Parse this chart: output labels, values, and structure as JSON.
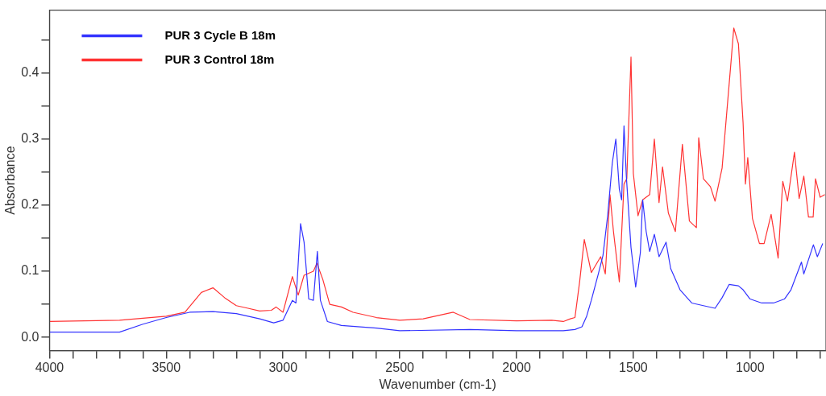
{
  "chart_data": {
    "type": "line",
    "xlabel": "Wavenumber (cm-1)",
    "ylabel": "Absorbance",
    "xlim": [
      4000,
      675
    ],
    "ylim": [
      -0.02,
      0.495
    ],
    "xticks": [
      4000,
      {
        "value": 3900,
        "label": null
      },
      {
        "value": 3800,
        "label": null
      },
      {
        "value": 3700,
        "label": null
      },
      {
        "value": 3600,
        "label": null
      },
      3500,
      {
        "value": 3400,
        "label": null
      },
      {
        "value": 3300,
        "label": null
      },
      {
        "value": 3200,
        "label": null
      },
      {
        "value": 3100,
        "label": null
      },
      3000,
      {
        "value": 2900,
        "label": null
      },
      {
        "value": 2800,
        "label": null
      },
      {
        "value": 2700,
        "label": null
      },
      {
        "value": 2600,
        "label": null
      },
      2500,
      {
        "value": 2400,
        "label": null
      },
      {
        "value": 2300,
        "label": null
      },
      {
        "value": 2200,
        "label": null
      },
      {
        "value": 2100,
        "label": null
      },
      2000,
      {
        "value": 1900,
        "label": null
      },
      {
        "value": 1800,
        "label": null
      },
      {
        "value": 1700,
        "label": null
      },
      {
        "value": 1600,
        "label": null
      },
      1500,
      {
        "value": 1400,
        "label": null
      },
      {
        "value": 1300,
        "label": null
      },
      {
        "value": 1200,
        "label": null
      },
      {
        "value": 1100,
        "label": null
      },
      1000,
      {
        "value": 900,
        "label": null
      },
      {
        "value": 800,
        "label": null
      },
      {
        "value": 700,
        "label": null
      }
    ],
    "yticks": [
      {
        "value": 0,
        "label": "0.0"
      },
      {
        "value": 0.05,
        "label": null
      },
      0.1,
      {
        "value": 0.15,
        "label": null
      },
      0.2,
      {
        "value": 0.25,
        "label": null
      },
      0.3,
      {
        "value": 0.35,
        "label": null
      },
      0.4,
      {
        "value": 0.45,
        "label": null
      }
    ],
    "legend": "top left",
    "marker": "none",
    "line_style": "solid",
    "series": [
      {
        "name": "PUR 3 Cycle B 18m",
        "color": "#3333ff",
        "x": [
          4000,
          3700,
          3600,
          3500,
          3400,
          3300,
          3200,
          3100,
          3040,
          3000,
          2960,
          2945,
          2925,
          2910,
          2890,
          2870,
          2853,
          2840,
          2810,
          2750,
          2600,
          2500,
          2200,
          2000,
          1800,
          1750,
          1720,
          1700,
          1680,
          1650,
          1630,
          1610,
          1590,
          1575,
          1560,
          1550,
          1540,
          1530,
          1510,
          1490,
          1470,
          1460,
          1445,
          1430,
          1410,
          1390,
          1360,
          1340,
          1330,
          1300,
          1250,
          1200,
          1150,
          1120,
          1090,
          1050,
          1030,
          1000,
          950,
          900,
          853,
          825,
          780,
          770,
          729,
          712,
          689
        ],
        "values": [
          0.008,
          0.008,
          0.02,
          0.03,
          0.038,
          0.039,
          0.036,
          0.028,
          0.022,
          0.026,
          0.056,
          0.052,
          0.172,
          0.144,
          0.058,
          0.056,
          0.13,
          0.056,
          0.024,
          0.018,
          0.014,
          0.01,
          0.012,
          0.01,
          0.01,
          0.012,
          0.016,
          0.032,
          0.056,
          0.096,
          0.124,
          0.184,
          0.264,
          0.3,
          0.224,
          0.208,
          0.32,
          0.244,
          0.136,
          0.076,
          0.128,
          0.208,
          0.16,
          0.13,
          0.156,
          0.122,
          0.144,
          0.104,
          0.096,
          0.072,
          0.052,
          0.048,
          0.044,
          0.06,
          0.08,
          0.078,
          0.072,
          0.058,
          0.052,
          0.052,
          0.058,
          0.072,
          0.114,
          0.096,
          0.14,
          0.122,
          0.142
        ]
      },
      {
        "name": "PUR 3 Control 18m",
        "color": "#ff3333",
        "x": [
          4000,
          3700,
          3500,
          3420,
          3350,
          3300,
          3250,
          3200,
          3150,
          3100,
          3050,
          3030,
          3000,
          2960,
          2935,
          2910,
          2870,
          2855,
          2830,
          2800,
          2750,
          2700,
          2600,
          2500,
          2400,
          2271,
          2200,
          2000,
          1850,
          1800,
          1770,
          1750,
          1730,
          1710,
          1680,
          1640,
          1620,
          1600,
          1585,
          1560,
          1540,
          1528,
          1510,
          1500,
          1480,
          1460,
          1430,
          1410,
          1390,
          1375,
          1350,
          1320,
          1290,
          1260,
          1230,
          1220,
          1200,
          1170,
          1150,
          1120,
          1080,
          1070,
          1050,
          1030,
          1020,
          1010,
          990,
          960,
          940,
          910,
          880,
          860,
          840,
          810,
          790,
          770,
          750,
          730,
          720,
          700,
          680
        ],
        "values": [
          0.024,
          0.026,
          0.032,
          0.038,
          0.068,
          0.075,
          0.06,
          0.048,
          0.044,
          0.04,
          0.041,
          0.046,
          0.038,
          0.092,
          0.064,
          0.094,
          0.1,
          0.112,
          0.088,
          0.05,
          0.046,
          0.038,
          0.03,
          0.026,
          0.028,
          0.038,
          0.027,
          0.025,
          0.026,
          0.024,
          0.028,
          0.03,
          0.084,
          0.148,
          0.098,
          0.122,
          0.096,
          0.216,
          0.16,
          0.084,
          0.232,
          0.24,
          0.424,
          0.248,
          0.184,
          0.208,
          0.216,
          0.3,
          0.204,
          0.258,
          0.188,
          0.16,
          0.292,
          0.176,
          0.166,
          0.302,
          0.24,
          0.228,
          0.206,
          0.256,
          0.424,
          0.468,
          0.444,
          0.324,
          0.232,
          0.272,
          0.18,
          0.142,
          0.142,
          0.186,
          0.12,
          0.236,
          0.206,
          0.28,
          0.21,
          0.244,
          0.182,
          0.182,
          0.24,
          0.212,
          0.216
        ]
      }
    ]
  }
}
